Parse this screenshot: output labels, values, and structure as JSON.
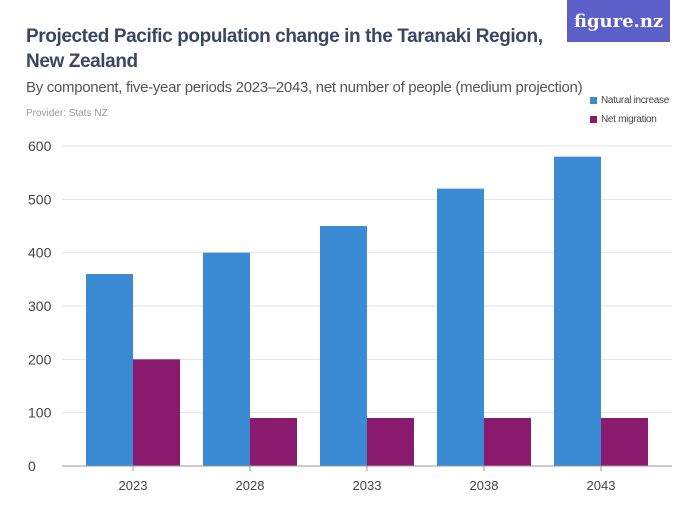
{
  "title": "Projected Pacific population change in the Taranaki Region, New Zealand",
  "subtitle": "By component, five-year periods 2023–2043, net number of people (medium projection)",
  "provider": "Provider: Stats NZ",
  "logo": "figure.nz",
  "chart_data": {
    "type": "bar",
    "categories": [
      "2023",
      "2028",
      "2033",
      "2038",
      "2043"
    ],
    "series": [
      {
        "name": "Natural increase",
        "color": "#3b8ad4",
        "values": [
          360,
          400,
          450,
          520,
          580
        ]
      },
      {
        "name": "Net migration",
        "color": "#8a1a6e",
        "values": [
          200,
          90,
          90,
          90,
          90
        ]
      }
    ],
    "ylim": [
      0,
      600
    ],
    "yticks": [
      0,
      100,
      200,
      300,
      400,
      500,
      600
    ],
    "grid": true,
    "legend": "top-right"
  }
}
